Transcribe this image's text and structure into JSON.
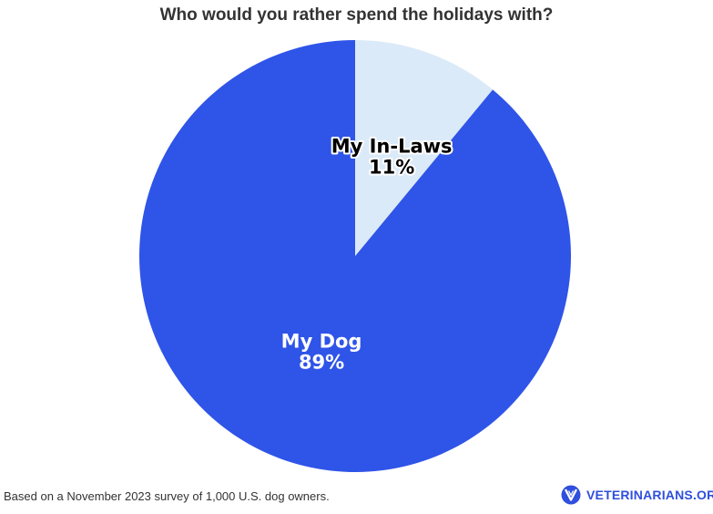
{
  "chart_data": {
    "type": "pie",
    "title": "Who would you rather spend the holidays with?",
    "slices": [
      {
        "label": "My In-Laws",
        "value": 11,
        "display": "11%",
        "color": "#dbeaf8",
        "text_color": "#000000",
        "halo_color": "#ffffff"
      },
      {
        "label": "My Dog",
        "value": 89,
        "display": "89%",
        "color": "#2f54e8",
        "text_color": "#ffffff",
        "halo_color": "#2f54e8"
      }
    ],
    "start_angle_deg": 0,
    "direction": "clockwise"
  },
  "footnote": "Based on a November 2023 survey of 1,000 U.S. dog owners.",
  "brand": {
    "name": "VETERINARIANS.ORG",
    "logo_icon": "v-badge-icon",
    "color": "#2f4fdc"
  }
}
